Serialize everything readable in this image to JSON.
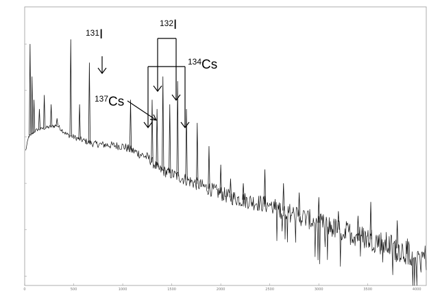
{
  "chart_data": {
    "type": "line",
    "title": "",
    "xlabel": "",
    "ylabel": "",
    "xlim": [
      0,
      4096
    ],
    "ylim_log10": [
      0.8,
      6.8
    ],
    "y_log": true,
    "grid": false,
    "x_ticks": [
      0,
      500,
      1000,
      1500,
      2000,
      2500,
      3000,
      3500,
      4000
    ],
    "y_ticks_log10": [
      1,
      2,
      3,
      4,
      5,
      6
    ],
    "baseline_log10": [
      [
        10,
        3.7
      ],
      [
        40,
        4.0
      ],
      [
        120,
        4.15
      ],
      [
        330,
        4.25
      ],
      [
        430,
        4.05
      ],
      [
        560,
        3.95
      ],
      [
        700,
        3.85
      ],
      [
        1000,
        3.8
      ],
      [
        1260,
        3.55
      ],
      [
        1370,
        3.3
      ],
      [
        1500,
        3.2
      ],
      [
        1800,
        2.95
      ],
      [
        2100,
        2.7
      ],
      [
        2450,
        2.55
      ],
      [
        2800,
        2.3
      ],
      [
        3200,
        2.0
      ],
      [
        3600,
        1.75
      ],
      [
        4000,
        1.45
      ],
      [
        4096,
        1.4
      ]
    ],
    "peaks": [
      {
        "x": 55,
        "log10": 6.0
      },
      {
        "x": 75,
        "log10": 5.3
      },
      {
        "x": 95,
        "log10": 4.8
      },
      {
        "x": 150,
        "log10": 4.6
      },
      {
        "x": 200,
        "log10": 4.9
      },
      {
        "x": 270,
        "log10": 4.7
      },
      {
        "x": 330,
        "log10": 4.4
      },
      {
        "x": 470,
        "log10": 6.1
      },
      {
        "x": 560,
        "log10": 4.7
      },
      {
        "x": 660,
        "log10": 5.6
      },
      {
        "x": 1080,
        "log10": 4.8
      },
      {
        "x": 1300,
        "log10": 4.8
      },
      {
        "x": 1350,
        "log10": 4.6
      },
      {
        "x": 1410,
        "log10": 5.3
      },
      {
        "x": 1480,
        "log10": 4.7
      },
      {
        "x": 1560,
        "log10": 5.2
      },
      {
        "x": 1650,
        "log10": 4.6
      },
      {
        "x": 1760,
        "log10": 4.3
      },
      {
        "x": 1880,
        "log10": 3.8
      },
      {
        "x": 2000,
        "log10": 3.4
      },
      {
        "x": 2100,
        "log10": 3.1
      },
      {
        "x": 2230,
        "log10": 3.0
      },
      {
        "x": 2450,
        "log10": 3.3
      },
      {
        "x": 2640,
        "log10": 3.0
      },
      {
        "x": 2800,
        "log10": 2.8
      },
      {
        "x": 3000,
        "log10": 2.7
      },
      {
        "x": 3200,
        "log10": 2.4
      },
      {
        "x": 3400,
        "log10": 2.3
      },
      {
        "x": 3530,
        "log10": 2.6
      },
      {
        "x": 3800,
        "log10": 2.2
      }
    ],
    "annotations": [
      {
        "id": "i131",
        "mass": "131",
        "symbol": "I"
      },
      {
        "id": "i132",
        "mass": "132",
        "symbol": "I"
      },
      {
        "id": "cs134",
        "mass": "134",
        "symbol": "Cs"
      },
      {
        "id": "cs137",
        "mass": "137",
        "symbol": "Cs"
      }
    ]
  }
}
